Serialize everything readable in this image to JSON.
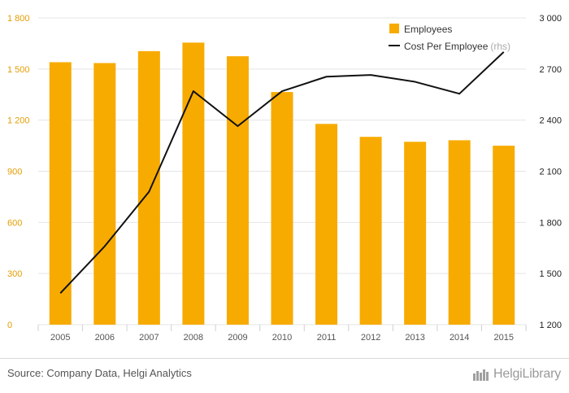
{
  "chart_data": {
    "type": "bar",
    "categories": [
      "2005",
      "2006",
      "2007",
      "2008",
      "2009",
      "2010",
      "2011",
      "2012",
      "2013",
      "2014",
      "2015"
    ],
    "series": [
      {
        "name": "Employees",
        "type": "bar",
        "axis": "left",
        "values": [
          1540,
          1535,
          1605,
          1655,
          1575,
          1365,
          1178,
          1102,
          1073,
          1082,
          1050
        ]
      },
      {
        "name": "Cost Per Employee",
        "legend_suffix": "(rhs)",
        "type": "line",
        "axis": "right",
        "values": [
          1385,
          1660,
          1980,
          2570,
          2365,
          2570,
          2655,
          2665,
          2625,
          2555,
          2800
        ]
      }
    ],
    "left_axis": {
      "ylim": [
        0,
        1800
      ],
      "ticks": [
        "0",
        "300",
        "600",
        "900",
        "1 200",
        "1 500",
        "1 800"
      ]
    },
    "right_axis": {
      "ylim": [
        1200,
        3000
      ],
      "ticks": [
        "1 200",
        "1 500",
        "1 800",
        "2 100",
        "2 400",
        "2 700",
        "3 000"
      ]
    },
    "grid": "horizontal",
    "legend_position": "top-right",
    "colors": {
      "bar": "#f7ab00",
      "line": "#111111",
      "left_tick": "#e49d00",
      "right_tick": "#222222",
      "grid": "#e5e5e5",
      "x_tick": "#555555"
    }
  },
  "footer": {
    "source": "Source: Company Data, Helgi Analytics",
    "brand_icon": "helgi-library-logo-icon",
    "brand": "HelgiLibrary"
  }
}
